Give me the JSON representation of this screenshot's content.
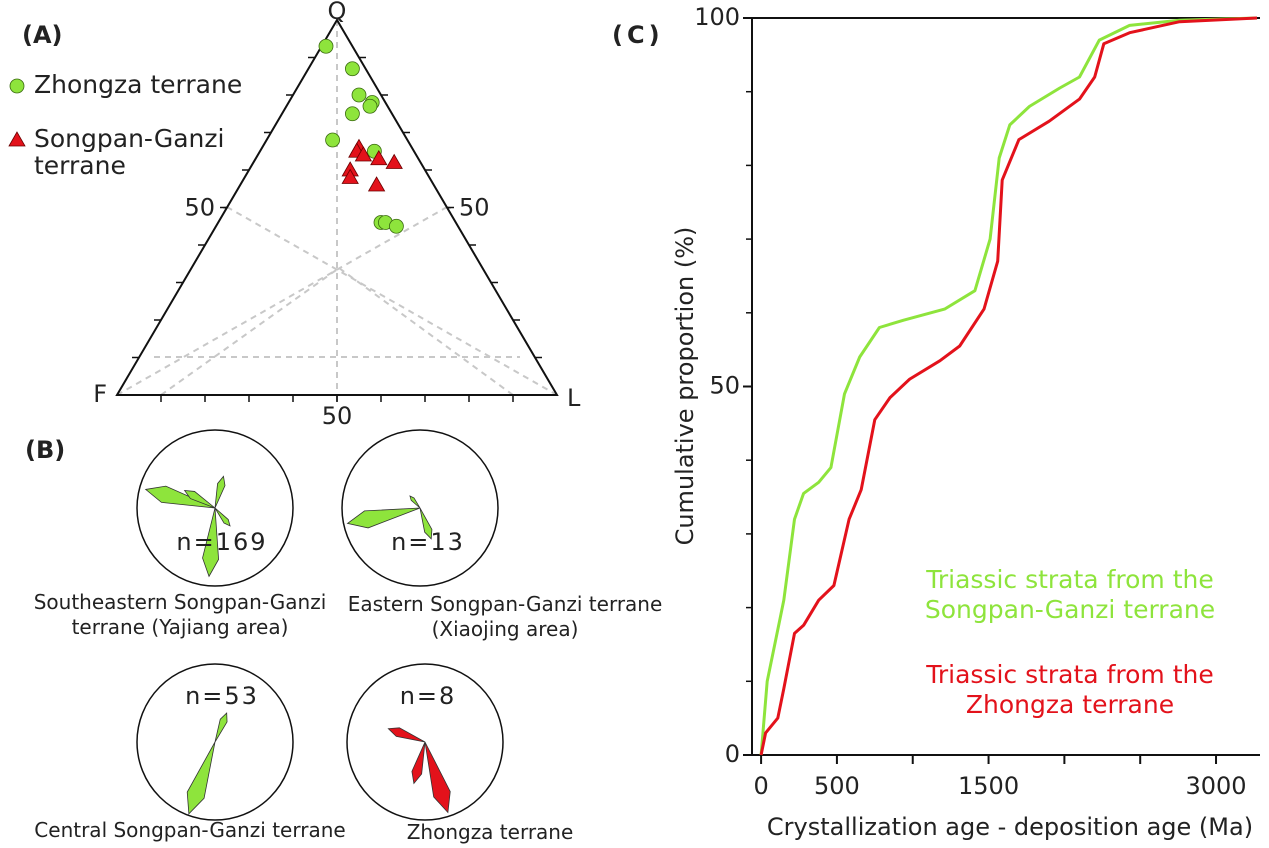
{
  "chart_data": [
    {
      "type": "ternary",
      "panel_label": "(A)",
      "vertices": {
        "q": "Q",
        "f": "F",
        "l": "L"
      },
      "qticks": [
        50
      ],
      "lticks": [
        50
      ],
      "fticks": [
        50
      ],
      "grid": true,
      "series": [
        {
          "name": "Zhongza terrane",
          "marker": "circle",
          "color": "#8ee43c",
          "q": [
            93,
            87,
            80,
            78,
            77,
            75,
            68,
            65,
            46,
            46,
            45
          ],
          "f": [
            6,
            3,
            5,
            3,
            4,
            9,
            17,
            9,
            17,
            16,
            14
          ],
          "l": [
            1,
            10,
            15,
            19,
            19,
            16,
            15,
            26,
            37,
            38,
            41
          ]
        },
        {
          "name": "Songpan-Ganzi terrane",
          "marker": "triangle",
          "color": "#e3121b",
          "q": [
            66,
            65,
            64,
            63,
            62,
            60,
            58,
            56
          ],
          "f": [
            12,
            13,
            12,
            9,
            6,
            17,
            18,
            13
          ],
          "l": [
            22,
            22,
            24,
            28,
            32,
            23,
            24,
            31
          ]
        }
      ]
    },
    {
      "type": "rose",
      "panel_label": "(B)",
      "roses": [
        {
          "caption": "Southeastern Songpan-Ganzi  terrane (Yajiang area)",
          "n": {
            "value": 169,
            "label": "n=169"
          },
          "color": "#8ee43c",
          "petals": [
            {
              "azimuth": 285,
              "length": 0.92
            },
            {
              "azimuth": 300,
              "length": 0.45
            },
            {
              "azimuth": 185,
              "length": 0.88
            },
            {
              "azimuth": 15,
              "length": 0.42
            },
            {
              "azimuth": 140,
              "length": 0.3
            }
          ]
        },
        {
          "caption": "Eastern Songpan-Ganzi terrane (Xiaojing area)",
          "n": {
            "value": 13,
            "label": "n=13"
          },
          "color": "#8ee43c",
          "petals": [
            {
              "azimuth": 258,
              "length": 0.95
            },
            {
              "azimuth": 160,
              "length": 0.42
            },
            {
              "azimuth": 320,
              "length": 0.2
            }
          ]
        },
        {
          "caption": "Central Songpan-Ganzi terrane",
          "n": {
            "value": 53,
            "label": "n=53"
          },
          "color": "#8ee43c",
          "petals": [
            {
              "azimuth": 22,
              "length": 0.4
            },
            {
              "azimuth": 200,
              "length": 0.98
            }
          ]
        },
        {
          "caption": "Zhongza terrane",
          "n": {
            "value": 8,
            "label": "n=8"
          },
          "color": "#e3121b",
          "petals": [
            {
              "azimuth": 290,
              "length": 0.5
            },
            {
              "azimuth": 162,
              "length": 0.95
            },
            {
              "azimuth": 195,
              "length": 0.55
            }
          ]
        }
      ]
    },
    {
      "type": "line",
      "panel_label": "(C)",
      "xlabel": "Crystallization age - deposition age (Ma)",
      "ylabel": "Cumulative proportion (%)",
      "xlim": [
        -60,
        3290
      ],
      "ylim": [
        0,
        100
      ],
      "xticks": [
        0,
        500,
        1500,
        3000
      ],
      "xminorticks": [
        1000,
        2000,
        2500
      ],
      "yticks": [
        0,
        50,
        100
      ],
      "yminorticks": [
        10,
        20,
        30,
        40,
        60,
        70,
        80,
        90
      ],
      "series": [
        {
          "name": "Triassic strata from the Songpan-Ganzi terrane",
          "color": "#8ee43c",
          "x": [
            0,
            40,
            120,
            150,
            220,
            280,
            380,
            460,
            550,
            650,
            780,
            940,
            1210,
            1410,
            1510,
            1570,
            1640,
            1770,
            1970,
            2100,
            2230,
            2430,
            2760,
            3270
          ],
          "values": [
            0,
            10,
            18,
            21,
            32,
            35.5,
            37,
            39,
            49,
            54,
            58,
            59,
            60.5,
            63,
            70,
            81,
            85.5,
            88,
            90.5,
            92,
            97,
            99,
            99.7,
            100
          ]
        },
        {
          "name": "Triassic strata from the Zhongza terrane",
          "color": "#e3121b",
          "x": [
            0,
            30,
            110,
            150,
            220,
            280,
            380,
            480,
            580,
            660,
            750,
            850,
            980,
            1180,
            1310,
            1470,
            1560,
            1590,
            1700,
            1900,
            2100,
            2200,
            2260,
            2430,
            2760,
            3270
          ],
          "values": [
            0,
            3,
            5,
            9,
            16.5,
            17.6,
            21,
            23,
            32,
            36,
            45.5,
            48.5,
            51,
            53.5,
            55.5,
            60.5,
            67,
            78,
            83.5,
            86,
            89,
            92,
            96.5,
            98,
            99.5,
            100
          ]
        }
      ]
    }
  ]
}
